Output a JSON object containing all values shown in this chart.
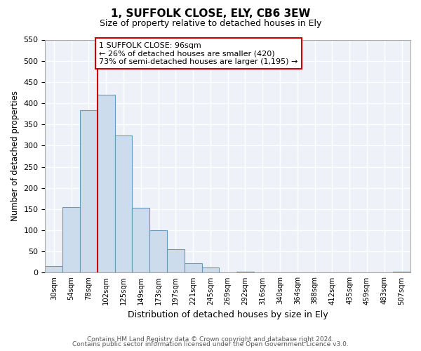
{
  "title": "1, SUFFOLK CLOSE, ELY, CB6 3EW",
  "subtitle": "Size of property relative to detached houses in Ely",
  "xlabel": "Distribution of detached houses by size in Ely",
  "ylabel": "Number of detached properties",
  "bar_labels": [
    "30sqm",
    "54sqm",
    "78sqm",
    "102sqm",
    "125sqm",
    "149sqm",
    "173sqm",
    "197sqm",
    "221sqm",
    "245sqm",
    "269sqm",
    "292sqm",
    "316sqm",
    "340sqm",
    "364sqm",
    "388sqm",
    "412sqm",
    "435sqm",
    "459sqm",
    "483sqm",
    "507sqm"
  ],
  "bar_heights": [
    15,
    155,
    383,
    420,
    323,
    153,
    100,
    55,
    22,
    12,
    0,
    3,
    0,
    0,
    0,
    0,
    0,
    0,
    0,
    0,
    3
  ],
  "bar_color": "#cddcec",
  "bar_edge_color": "#6699bb",
  "property_line_index": 3,
  "property_line_color": "#cc0000",
  "ylim": [
    0,
    550
  ],
  "yticks": [
    0,
    50,
    100,
    150,
    200,
    250,
    300,
    350,
    400,
    450,
    500,
    550
  ],
  "annotation_title": "1 SUFFOLK CLOSE: 96sqm",
  "annotation_line1": "← 26% of detached houses are smaller (420)",
  "annotation_line2": "73% of semi-detached houses are larger (1,195) →",
  "annotation_box_color": "#ffffff",
  "annotation_box_edge": "#cc0000",
  "footnote1": "Contains HM Land Registry data © Crown copyright and database right 2024.",
  "footnote2": "Contains public sector information licensed under the Open Government Licence v3.0.",
  "bg_color": "#eef2f8"
}
